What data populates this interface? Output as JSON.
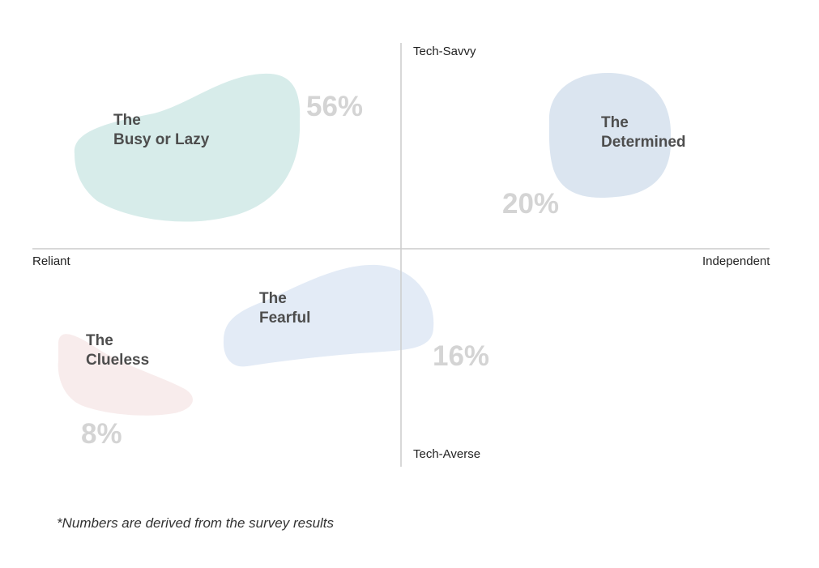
{
  "axes": {
    "top": "Tech-Savvy",
    "bottom": "Tech-Averse",
    "left": "Reliant",
    "right": "Independent"
  },
  "segments": [
    {
      "id": "busy",
      "title_line1": "The",
      "title_line2": "Busy or Lazy",
      "percent": "56%",
      "color": "#d7ecea"
    },
    {
      "id": "determined",
      "title_line1": "The",
      "title_line2": "Determined",
      "percent": "20%",
      "color": "#dbe5f0"
    },
    {
      "id": "fearful",
      "title_line1": "The",
      "title_line2": "Fearful",
      "percent": "16%",
      "color": "#e3ebf6"
    },
    {
      "id": "clueless",
      "title_line1": "The",
      "title_line2": "Clueless",
      "percent": "8%",
      "color": "#f8ecec"
    }
  ],
  "footnote": "*Numbers are derived from the survey results"
}
